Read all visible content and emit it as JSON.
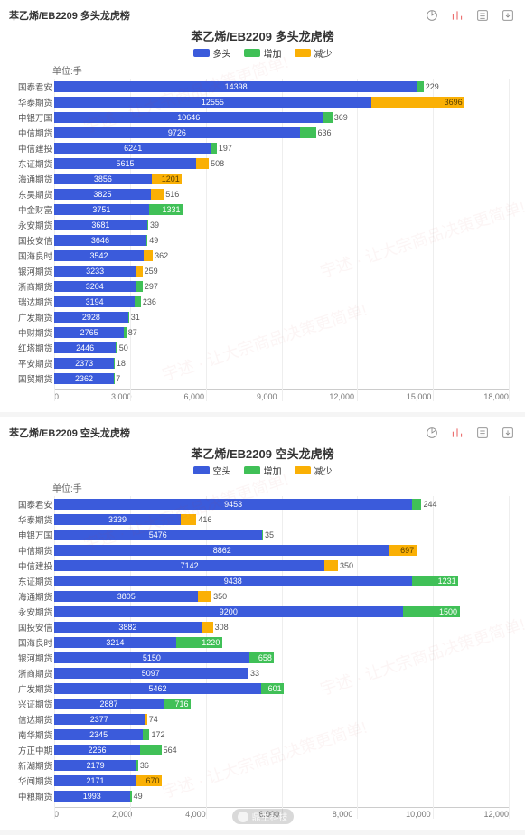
{
  "colors": {
    "primary": "#3b5bdb",
    "increase": "#40c057",
    "decrease": "#fab005",
    "grid": "#eeeeee",
    "axis_text": "#777777",
    "bg": "#ffffff"
  },
  "legend": {
    "series1_long": "多头",
    "series1_short": "空头",
    "series2": "增加",
    "series3": "减少"
  },
  "unit_label": "单位:手",
  "weibo_name": "鼎生科技",
  "icons": [
    "pie-icon",
    "bars-icon",
    "list-icon",
    "download-icon"
  ],
  "panels": [
    {
      "header": "苯乙烯/EB2209 多头龙虎榜",
      "title": "苯乙烯/EB2209 多头龙虎榜",
      "legend_primary": "多头",
      "x_max": 18000,
      "x_step": 3000,
      "rows": [
        {
          "label": "国泰君安",
          "base": 14398,
          "delta": 229,
          "dir": "inc"
        },
        {
          "label": "华泰期货",
          "base": 12555,
          "delta": 3696,
          "dir": "dec"
        },
        {
          "label": "申银万国",
          "base": 10646,
          "delta": 369,
          "dir": "inc"
        },
        {
          "label": "中信期货",
          "base": 9726,
          "delta": 636,
          "dir": "inc"
        },
        {
          "label": "中信建投",
          "base": 6241,
          "delta": 197,
          "dir": "inc"
        },
        {
          "label": "东证期货",
          "base": 5615,
          "delta": 508,
          "dir": "dec"
        },
        {
          "label": "海通期货",
          "base": 3856,
          "delta": 1201,
          "dir": "dec"
        },
        {
          "label": "东吴期货",
          "base": 3825,
          "delta": 516,
          "dir": "dec"
        },
        {
          "label": "中金财富",
          "base": 3751,
          "delta": 1331,
          "dir": "inc"
        },
        {
          "label": "永安期货",
          "base": 3681,
          "delta": 39,
          "dir": "inc"
        },
        {
          "label": "国投安信",
          "base": 3646,
          "delta": 49,
          "dir": "inc"
        },
        {
          "label": "国海良时",
          "base": 3542,
          "delta": 362,
          "dir": "dec"
        },
        {
          "label": "银河期货",
          "base": 3233,
          "delta": 259,
          "dir": "dec"
        },
        {
          "label": "浙商期货",
          "base": 3204,
          "delta": 297,
          "dir": "inc"
        },
        {
          "label": "瑞达期货",
          "base": 3194,
          "delta": 236,
          "dir": "inc"
        },
        {
          "label": "广发期货",
          "base": 2928,
          "delta": 31,
          "dir": "inc"
        },
        {
          "label": "中财期货",
          "base": 2765,
          "delta": 87,
          "dir": "inc"
        },
        {
          "label": "红塔期货",
          "base": 2446,
          "delta": 50,
          "dir": "inc"
        },
        {
          "label": "平安期货",
          "base": 2373,
          "delta": 18,
          "dir": "inc"
        },
        {
          "label": "国贸期货",
          "base": 2362,
          "delta": 7,
          "dir": "inc"
        }
      ]
    },
    {
      "header": "苯乙烯/EB2209 空头龙虎榜",
      "title": "苯乙烯/EB2209 空头龙虎榜",
      "legend_primary": "空头",
      "x_max": 12000,
      "x_step": 2000,
      "rows": [
        {
          "label": "国泰君安",
          "base": 9453,
          "delta": 244,
          "dir": "inc"
        },
        {
          "label": "华泰期货",
          "base": 3339,
          "delta": 416,
          "dir": "dec"
        },
        {
          "label": "申银万国",
          "base": 5476,
          "delta": 35,
          "dir": "inc"
        },
        {
          "label": "中信期货",
          "base": 8862,
          "delta": 697,
          "dir": "dec"
        },
        {
          "label": "中信建投",
          "base": 7142,
          "delta": 350,
          "dir": "dec"
        },
        {
          "label": "东证期货",
          "base": 9438,
          "delta": 1231,
          "dir": "inc"
        },
        {
          "label": "海通期货",
          "base": 3805,
          "delta": 350,
          "dir": "dec"
        },
        {
          "label": "永安期货",
          "base": 9200,
          "delta": 1500,
          "dir": "inc"
        },
        {
          "label": "国投安信",
          "base": 3882,
          "delta": 308,
          "dir": "dec"
        },
        {
          "label": "国海良时",
          "base": 3214,
          "delta": 1220,
          "dir": "inc"
        },
        {
          "label": "银河期货",
          "base": 5150,
          "delta": 658,
          "dir": "inc"
        },
        {
          "label": "浙商期货",
          "base": 5097,
          "delta": 33,
          "dir": "inc"
        },
        {
          "label": "广发期货",
          "base": 5462,
          "delta": 601,
          "dir": "inc"
        },
        {
          "label": "兴证期货",
          "base": 2887,
          "delta": 716,
          "dir": "inc"
        },
        {
          "label": "信达期货",
          "base": 2377,
          "delta": 74,
          "dir": "dec"
        },
        {
          "label": "南华期货",
          "base": 2345,
          "delta": 172,
          "dir": "inc"
        },
        {
          "label": "方正中期",
          "base": 2266,
          "delta": 564,
          "dir": "inc"
        },
        {
          "label": "新湖期货",
          "base": 2179,
          "delta": 36,
          "dir": "inc"
        },
        {
          "label": "华闻期货",
          "base": 2171,
          "delta": 670,
          "dir": "dec"
        },
        {
          "label": "中粮期货",
          "base": 1993,
          "delta": 49,
          "dir": "inc"
        }
      ]
    }
  ]
}
